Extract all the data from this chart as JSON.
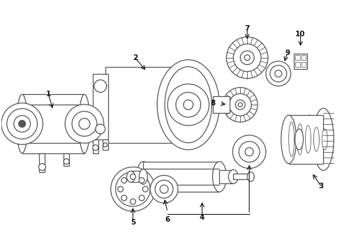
{
  "bg_color": "#ffffff",
  "line_color": "#555555",
  "label_color": "#111111",
  "label_fontsize": 7.5,
  "arrow_color": "#111111",
  "figsize": [
    4.9,
    3.6
  ],
  "dpi": 100
}
